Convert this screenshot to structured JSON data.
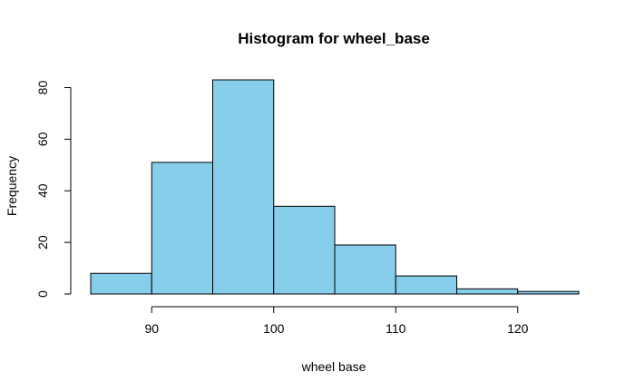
{
  "chart_data": {
    "type": "bar",
    "title": "Histogram for wheel_base",
    "xlabel": "wheel base",
    "ylabel": "Frequency",
    "bins": [
      {
        "start": 85,
        "end": 90,
        "count": 8
      },
      {
        "start": 90,
        "end": 95,
        "count": 51
      },
      {
        "start": 95,
        "end": 100,
        "count": 83
      },
      {
        "start": 100,
        "end": 105,
        "count": 34
      },
      {
        "start": 105,
        "end": 110,
        "count": 19
      },
      {
        "start": 110,
        "end": 115,
        "count": 7
      },
      {
        "start": 115,
        "end": 120,
        "count": 2
      },
      {
        "start": 120,
        "end": 125,
        "count": 1
      }
    ],
    "xlim": [
      85,
      125
    ],
    "ylim": [
      0,
      83
    ],
    "x_ticks": [
      "90",
      "100",
      "110",
      "120"
    ],
    "y_ticks": [
      "0",
      "20",
      "40",
      "60",
      "80"
    ],
    "bar_color": "#87CEEB",
    "grid": false
  }
}
